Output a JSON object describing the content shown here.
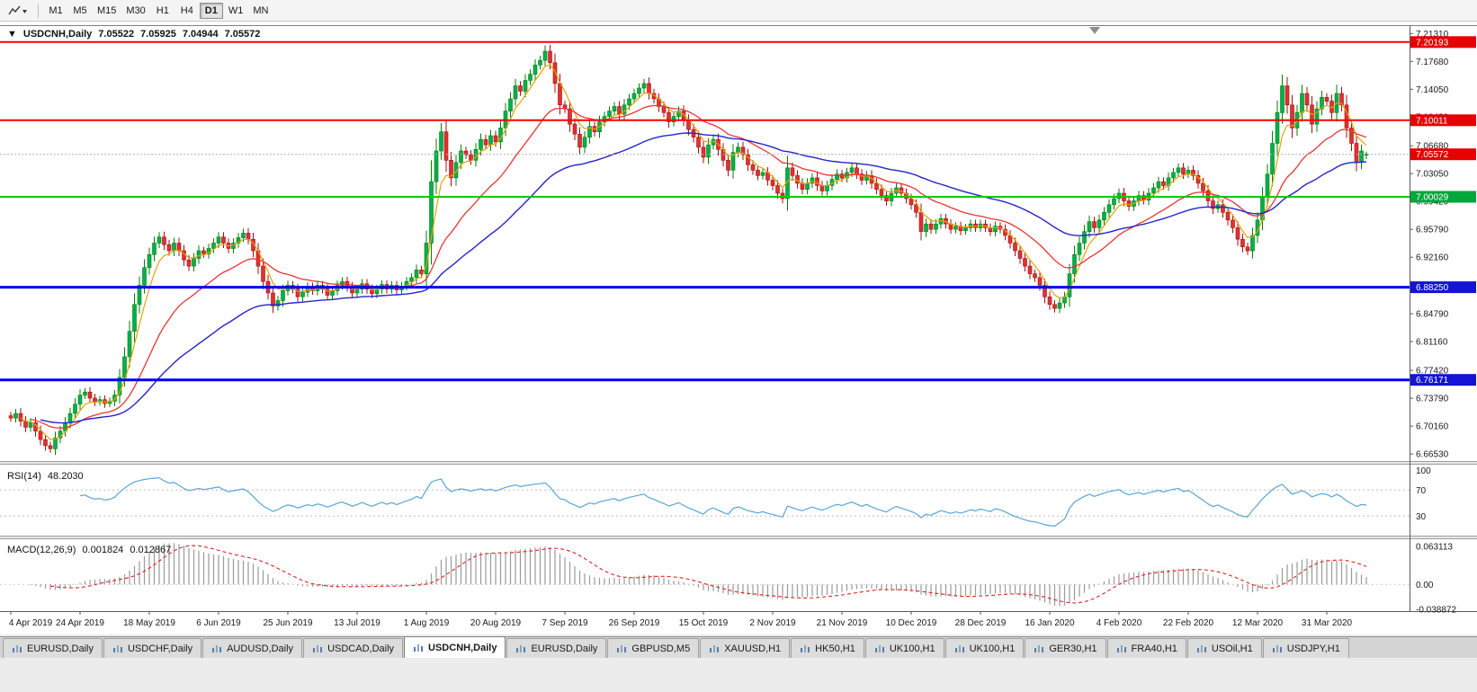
{
  "toolbar": {
    "timeframes": [
      "M1",
      "M5",
      "M15",
      "M30",
      "H1",
      "H4",
      "D1",
      "W1",
      "MN"
    ],
    "active": "D1"
  },
  "chart_header": {
    "collapse": "▼",
    "symbol": "USDCNH,Daily",
    "open": "7.05522",
    "high": "7.05925",
    "low": "7.04944",
    "close": "7.05572"
  },
  "price_axis": {
    "labels": [
      "7.21310",
      "7.17680",
      "7.14050",
      "7.10430",
      "7.06680",
      "7.03050",
      "6.99420",
      "6.95790",
      "6.92160",
      "6.84790",
      "6.81160",
      "6.77420",
      "6.73790",
      "6.70160",
      "6.66530"
    ],
    "badges": [
      {
        "text": "7.20193",
        "color": "#e60000"
      },
      {
        "text": "7.10011",
        "color": "#e60000"
      },
      {
        "text": "7.05572",
        "color": "#e60000"
      },
      {
        "text": "7.00029",
        "color": "#00a73c"
      },
      {
        "text": "6.88250",
        "color": "#1414d2"
      },
      {
        "text": "6.76171",
        "color": "#1414d2"
      }
    ]
  },
  "hlines": [
    {
      "price": 7.20193,
      "color": "#ff0000",
      "width": 2
    },
    {
      "price": 7.10011,
      "color": "#ff0000",
      "width": 2
    },
    {
      "price": 7.00029,
      "color": "#00cc00",
      "width": 2
    },
    {
      "price": 6.8825,
      "color": "#0000ee",
      "width": 3
    },
    {
      "price": 6.76171,
      "color": "#0000ee",
      "width": 3
    }
  ],
  "current_price": {
    "value": 7.05572,
    "label": "7.05572"
  },
  "rsi": {
    "label": "RSI(14)",
    "value": "48.2030",
    "levels": [
      "100",
      "70",
      "30"
    ],
    "level_values": [
      100,
      70,
      30
    ]
  },
  "macd": {
    "label": "MACD(12,26,9)",
    "main_value": "0.001824",
    "signal_value": "0.012867",
    "axis_labels": [
      "0.063113",
      "0.00",
      "-0.038872"
    ],
    "axis_values": [
      0.063113,
      0.0,
      -0.038872
    ]
  },
  "date_axis": {
    "labels": [
      "4 Apr 2019",
      "24 Apr 2019",
      "18 May 2019",
      "6 Jun 2019",
      "25 Jun 2019",
      "13 Jul 2019",
      "1 Aug 2019",
      "20 Aug 2019",
      "7 Sep 2019",
      "26 Sep 2019",
      "15 Oct 2019",
      "2 Nov 2019",
      "21 Nov 2019",
      "10 Dec 2019",
      "28 Dec 2019",
      "16 Jan 2020",
      "4 Feb 2020",
      "22 Feb 2020",
      "12 Mar 2020",
      "31 Mar 2020"
    ]
  },
  "tabs": {
    "labels": [
      "EURUSD,Daily",
      "USDCHF,Daily",
      "AUDUSD,Daily",
      "USDCAD,Daily",
      "USDCNH,Daily",
      "EURUSD,Daily",
      "GBPUSD,M5",
      "XAUUSD,H1",
      "HK50,H1",
      "UK100,H1",
      "UK100,H1",
      "GER30,H1",
      "FRA40,H1",
      "USOil,H1",
      "USDJPY,H1"
    ],
    "active_index": 4
  },
  "colors": {
    "up": "#00b050",
    "up_edge": "#067f06",
    "down": "#e23030",
    "down_edge": "#a01010",
    "ma_fast": "#e8a200",
    "ma_mid": "#ee3333",
    "ma_slow": "#2424cc",
    "rsi_line": "#58a6d8",
    "macd_hist": "#9a9a9a",
    "macd_signal": "#dd2222",
    "current_price_line": "#b0b0b0"
  },
  "chart_data": {
    "type": "candlestick",
    "title": "USDCNH Daily with RSI(14) and MACD(12,26,9)",
    "symbol": "USDCNH",
    "timeframe": "Daily",
    "price_axis_range": [
      6.656,
      7.224
    ],
    "x_tick_labels": [
      "4 Apr 2019",
      "24 Apr 2019",
      "18 May 2019",
      "6 Jun 2019",
      "25 Jun 2019",
      "13 Jul 2019",
      "1 Aug 2019",
      "20 Aug 2019",
      "7 Sep 2019",
      "26 Sep 2019",
      "15 Oct 2019",
      "2 Nov 2019",
      "21 Nov 2019",
      "10 Dec 2019",
      "28 Dec 2019",
      "16 Jan 2020",
      "4 Feb 2020",
      "22 Feb 2020",
      "12 Mar 2020",
      "31 Mar 2020"
    ],
    "ticks_every_n_candles": 14,
    "last_ohlc": {
      "open": 7.05522,
      "high": 7.05925,
      "low": 7.04944,
      "close": 7.05572
    },
    "macd_axis_range": [
      -0.038872,
      0.063113
    ],
    "closes": [
      6.712,
      6.718,
      6.708,
      6.7,
      6.706,
      6.695,
      6.684,
      6.676,
      6.672,
      6.686,
      6.695,
      6.706,
      6.718,
      6.73,
      6.742,
      6.746,
      6.738,
      6.733,
      6.736,
      6.731,
      6.734,
      6.742,
      6.765,
      6.792,
      6.825,
      6.86,
      6.885,
      6.908,
      6.925,
      6.94,
      6.948,
      6.938,
      6.93,
      6.94,
      6.93,
      6.918,
      6.91,
      6.92,
      6.93,
      6.926,
      6.933,
      6.94,
      6.948,
      6.94,
      6.933,
      6.94,
      6.947,
      6.953,
      6.945,
      6.93,
      6.91,
      6.89,
      6.875,
      6.858,
      6.865,
      6.878,
      6.885,
      6.88,
      6.87,
      6.876,
      6.883,
      6.878,
      6.885,
      6.88,
      6.872,
      6.878,
      6.885,
      6.89,
      6.883,
      6.875,
      6.88,
      6.887,
      6.88,
      6.874,
      6.88,
      6.886,
      6.88,
      6.885,
      6.879,
      6.884,
      6.89,
      6.895,
      6.905,
      6.9,
      6.94,
      7.02,
      7.06,
      7.085,
      7.048,
      7.025,
      7.045,
      7.06,
      7.055,
      7.048,
      7.062,
      7.075,
      7.068,
      7.08,
      7.072,
      7.09,
      7.112,
      7.128,
      7.145,
      7.138,
      7.152,
      7.16,
      7.172,
      7.178,
      7.19,
      7.175,
      7.148,
      7.12,
      7.115,
      7.095,
      7.082,
      7.065,
      7.078,
      7.092,
      7.085,
      7.098,
      7.105,
      7.112,
      7.118,
      7.108,
      7.12,
      7.128,
      7.135,
      7.142,
      7.148,
      7.135,
      7.128,
      7.118,
      7.11,
      7.098,
      7.105,
      7.112,
      7.1,
      7.088,
      7.078,
      7.065,
      7.052,
      7.068,
      7.075,
      7.062,
      7.048,
      7.035,
      7.058,
      7.065,
      7.055,
      7.042,
      7.035,
      7.028,
      7.032,
      7.022,
      7.015,
      7.005,
      6.998,
      7.038,
      7.028,
      7.018,
      7.01,
      7.018,
      7.025,
      7.015,
      7.008,
      7.015,
      7.023,
      7.03,
      7.025,
      7.032,
      7.038,
      7.03,
      7.022,
      7.028,
      7.018,
      7.01,
      7.002,
      6.995,
      7.005,
      7.012,
      7.005,
      6.998,
      6.99,
      6.98,
      6.955,
      6.965,
      6.958,
      6.965,
      6.972,
      6.965,
      6.958,
      6.962,
      6.956,
      6.96,
      6.965,
      6.96,
      6.965,
      6.96,
      6.955,
      6.962,
      6.958,
      6.95,
      6.94,
      6.93,
      6.92,
      6.91,
      6.9,
      6.895,
      6.885,
      6.87,
      6.86,
      6.855,
      6.862,
      6.87,
      6.9,
      6.925,
      6.94,
      6.955,
      6.968,
      6.96,
      6.97,
      6.98,
      6.99,
      6.998,
      7.005,
      6.995,
      6.988,
      6.995,
      7.002,
      6.996,
      7.005,
      7.012,
      7.02,
      7.015,
      7.025,
      7.032,
      7.038,
      7.03,
      7.035,
      7.028,
      7.018,
      7.008,
      6.995,
      6.985,
      6.99,
      6.98,
      6.97,
      6.96,
      6.945,
      6.935,
      6.93,
      6.95,
      6.97,
      7.0,
      7.03,
      7.07,
      7.11,
      7.145,
      7.12,
      7.09,
      7.11,
      7.135,
      7.12,
      7.095,
      7.115,
      7.13,
      7.125,
      7.11,
      7.135,
      7.12,
      7.09,
      7.07,
      7.045,
      7.06,
      7.0557
    ]
  }
}
